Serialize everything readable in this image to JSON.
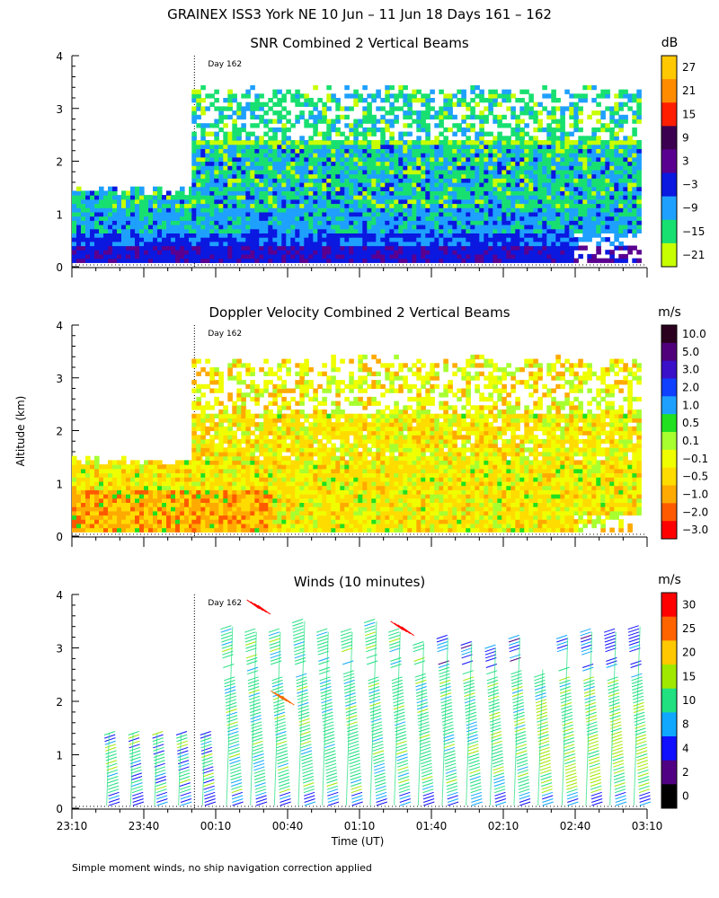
{
  "header": {
    "title": "GRAINEX ISS3 York NE  10 Jun – 11 Jun 18 Days 161 – 162"
  },
  "footer": {
    "note": "Simple moment winds, no ship navigation correction applied"
  },
  "shared": {
    "ylabel": "Altitude (km)",
    "xlabel": "Time (UT)",
    "day_marker": "Day 162",
    "y_ticks": [
      "0",
      "1",
      "2",
      "3",
      "4"
    ],
    "x_ticks": [
      "23:10",
      "23:40",
      "00:10",
      "00:40",
      "01:10",
      "01:40",
      "02:10",
      "02:40",
      "03:10"
    ]
  },
  "chart_data": [
    {
      "type": "heatmap",
      "title": "SNR Combined 2 Vertical Beams",
      "ylabel": "Altitude (km)",
      "ylim": [
        0,
        4
      ],
      "colorbar": {
        "unit": "dB",
        "labels": [
          "27",
          "21",
          "15",
          "9",
          "3",
          "−3",
          "−9",
          "−15",
          "−21"
        ],
        "colors": [
          "#ffc800",
          "#ff8c00",
          "#ff1e00",
          "#3c0050",
          "#5a0090",
          "#0a18e0",
          "#1ea0ff",
          "#18e070",
          "#c8ff00"
        ]
      },
      "data_extent": [
        {
          "start": "23:10",
          "end": "23:59",
          "top_km": 1.4
        },
        {
          "start": "00:00",
          "end": "03:00",
          "top_km": 3.3
        }
      ],
      "layers": [
        {
          "top_km": 0.4,
          "range_db": "3 to 9"
        },
        {
          "top_km": 1.0,
          "range_db": "-9 to -3"
        },
        {
          "top_km": 2.5,
          "range_db": "-15 to -3"
        },
        {
          "top_km": 3.3,
          "range_db": "-21 to -9"
        }
      ]
    },
    {
      "type": "heatmap",
      "title": "Doppler Velocity Combined 2 Vertical Beams",
      "ylim": [
        0,
        4
      ],
      "colorbar": {
        "unit": "m/s",
        "labels": [
          "10.0",
          "5.0",
          "3.0",
          "2.0",
          "1.0",
          "0.5",
          "0.1",
          "−0.1",
          "−0.5",
          "−1.0",
          "−2.0",
          "−3.0"
        ],
        "colors": [
          "#2a001e",
          "#50007a",
          "#3a10c8",
          "#1040ff",
          "#1ea0ff",
          "#20e020",
          "#a8ff30",
          "#f0ff00",
          "#ffdc00",
          "#ffaa00",
          "#ff5a00",
          "#ff0000"
        ]
      },
      "data_extent": [
        {
          "start": "23:10",
          "end": "23:59",
          "top_km": 1.4
        },
        {
          "start": "00:00",
          "end": "03:00",
          "top_km": 3.3
        }
      ],
      "dominant_range_ms": "-1.0 to -0.1"
    },
    {
      "type": "barbs",
      "title": "Winds (10 minutes)",
      "ylim": [
        0,
        4
      ],
      "colorbar": {
        "unit": "m/s",
        "labels": [
          "30",
          "25",
          "20",
          "15",
          "10",
          "8",
          "4",
          "2",
          "0"
        ],
        "colors": [
          "#ff0000",
          "#ff6400",
          "#ffc800",
          "#a0e800",
          "#20e080",
          "#10a8ff",
          "#1010ff",
          "#500082",
          "#000000"
        ]
      },
      "columns": [
        {
          "time": "23:20",
          "top_km": 1.4
        },
        {
          "time": "23:30",
          "top_km": 1.4
        },
        {
          "time": "23:40",
          "top_km": 1.4
        },
        {
          "time": "23:50",
          "top_km": 1.4
        },
        {
          "time": "00:00",
          "top_km": 1.4
        },
        {
          "time": "00:10",
          "top_km": 3.4
        },
        {
          "time": "00:20",
          "top_km": 3.3
        },
        {
          "time": "00:30",
          "top_km": 3.3
        },
        {
          "time": "00:40",
          "top_km": 3.5
        },
        {
          "time": "00:50",
          "top_km": 3.3
        },
        {
          "time": "01:00",
          "top_km": 3.3
        },
        {
          "time": "01:10",
          "top_km": 3.5
        },
        {
          "time": "01:20",
          "top_km": 3.3
        },
        {
          "time": "01:30",
          "top_km": 3.1
        },
        {
          "time": "01:40",
          "top_km": 3.2
        },
        {
          "time": "01:50",
          "top_km": 3.1
        },
        {
          "time": "02:00",
          "top_km": 3.0
        },
        {
          "time": "02:10",
          "top_km": 3.2
        },
        {
          "time": "02:20",
          "top_km": 2.6
        },
        {
          "time": "02:30",
          "top_km": 3.2
        },
        {
          "time": "02:40",
          "top_km": 3.3
        },
        {
          "time": "02:50",
          "top_km": 3.3
        },
        {
          "time": "03:00",
          "top_km": 3.4
        }
      ]
    }
  ]
}
